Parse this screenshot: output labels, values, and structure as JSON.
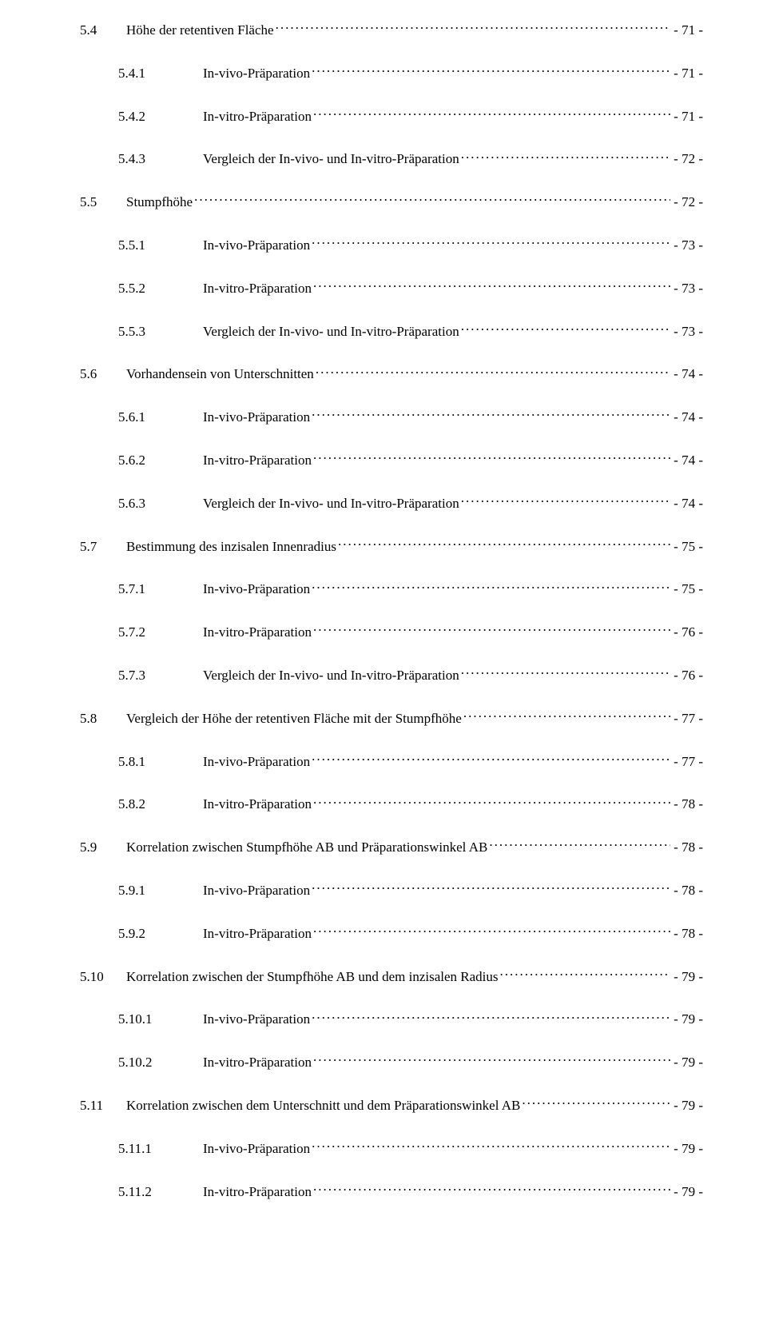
{
  "toc": [
    {
      "num": "5.4",
      "title": "Höhe der retentiven Fläche",
      "page": "- 71 -",
      "level": 0
    },
    {
      "num": "5.4.1",
      "title": "In-vivo-Präparation",
      "page": "- 71 -",
      "level": 1
    },
    {
      "num": "5.4.2",
      "title": "In-vitro-Präparation",
      "page": "- 71 -",
      "level": 1
    },
    {
      "num": "5.4.3",
      "title": "Vergleich der In-vivo- und In-vitro-Präparation",
      "page": "- 72 -",
      "level": 1
    },
    {
      "num": "5.5",
      "title": "Stumpfhöhe",
      "page": "- 72 -",
      "level": 0
    },
    {
      "num": "5.5.1",
      "title": "In-vivo-Präparation",
      "page": "- 73 -",
      "level": 1
    },
    {
      "num": "5.5.2",
      "title": "In-vitro-Präparation",
      "page": "- 73 -",
      "level": 1
    },
    {
      "num": "5.5.3",
      "title": "Vergleich der In-vivo- und In-vitro-Präparation",
      "page": "- 73 -",
      "level": 1
    },
    {
      "num": "5.6",
      "title": "Vorhandensein von Unterschnitten",
      "page": "- 74 -",
      "level": 0
    },
    {
      "num": "5.6.1",
      "title": "In-vivo-Präparation",
      "page": "- 74 -",
      "level": 1
    },
    {
      "num": "5.6.2",
      "title": "In-vitro-Präparation",
      "page": "- 74 -",
      "level": 1
    },
    {
      "num": "5.6.3",
      "title": "Vergleich der In-vivo- und In-vitro-Präparation",
      "page": "- 74 -",
      "level": 1
    },
    {
      "num": "5.7",
      "title": "Bestimmung des inzisalen Innenradius",
      "page": "- 75 -",
      "level": 0
    },
    {
      "num": "5.7.1",
      "title": "In-vivo-Präparation",
      "page": "- 75 -",
      "level": 1
    },
    {
      "num": "5.7.2",
      "title": "In-vitro-Präparation",
      "page": "- 76 -",
      "level": 1
    },
    {
      "num": "5.7.3",
      "title": "Vergleich der In-vivo- und In-vitro-Präparation",
      "page": "- 76 -",
      "level": 1
    },
    {
      "num": "5.8",
      "title": "Vergleich der Höhe der retentiven Fläche mit der Stumpfhöhe",
      "page": "- 77 -",
      "level": 0
    },
    {
      "num": "5.8.1",
      "title": "In-vivo-Präparation",
      "page": "- 77 -",
      "level": 1
    },
    {
      "num": "5.8.2",
      "title": "In-vitro-Präparation",
      "page": "- 78 -",
      "level": 1
    },
    {
      "num": "5.9",
      "title": "Korrelation zwischen Stumpfhöhe AB und Präparationswinkel AB",
      "page": "- 78 -",
      "level": 0
    },
    {
      "num": "5.9.1",
      "title": "In-vivo-Präparation",
      "page": "- 78 -",
      "level": 1
    },
    {
      "num": "5.9.2",
      "title": "In-vitro-Präparation",
      "page": "- 78 -",
      "level": 1
    },
    {
      "num": "5.10",
      "title": "Korrelation zwischen der Stumpfhöhe AB und dem inzisalen Radius",
      "page": "- 79 -",
      "level": 0
    },
    {
      "num": "5.10.1",
      "title": "In-vivo-Präparation",
      "page": "- 79 -",
      "level": 1
    },
    {
      "num": "5.10.2",
      "title": "In-vitro-Präparation",
      "page": "- 79 -",
      "level": 1
    },
    {
      "num": "5.11",
      "title": "Korrelation zwischen dem Unterschnitt und dem Präparationswinkel AB",
      "page": "- 79 -",
      "level": 0
    },
    {
      "num": "5.11.1",
      "title": "In-vivo-Präparation",
      "page": "- 79 -",
      "level": 1
    },
    {
      "num": "5.11.2",
      "title": "In-vitro-Präparation",
      "page": "- 79 -",
      "level": 1
    }
  ]
}
